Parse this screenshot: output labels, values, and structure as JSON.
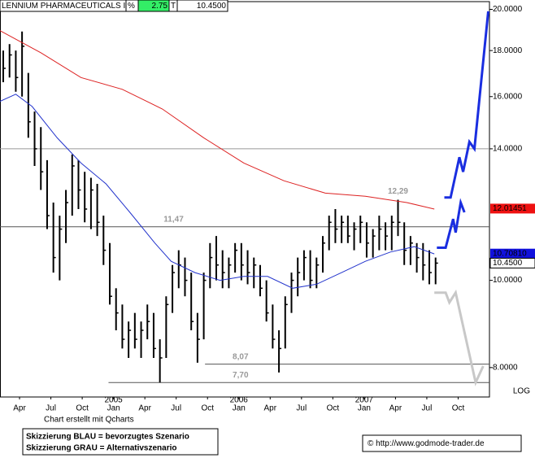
{
  "header": {
    "name": "LENNIUM PHARMACEUTICALS I",
    "unit": "%",
    "change": "2.75",
    "flag": "T",
    "price": "10.4500"
  },
  "footer": {
    "note": "Chart erstellt mit Qcharts",
    "scenarios": [
      "Skizzierung BLAU = bevorzugtes Szenario",
      "Skizzierung GRAU = Alternativszenario"
    ],
    "copyright": "© http://www.godmode-trader.de"
  },
  "chart_data": {
    "type": "ohlc",
    "log_scale": true,
    "scale_label": "LOG",
    "bar_color": "#000000",
    "xlim": [
      2004.094,
      2008.0
    ],
    "ylim": [
      7.42,
      20.4
    ],
    "xticks": [
      {
        "value": 2004.25,
        "label": "Apr"
      },
      {
        "value": 2004.5,
        "label": "Jul"
      },
      {
        "value": 2004.75,
        "label": "Oct"
      },
      {
        "value": 2005.0,
        "label": "Jan"
      },
      {
        "value": 2005.25,
        "label": "Apr"
      },
      {
        "value": 2005.5,
        "label": "Jul"
      },
      {
        "value": 2005.75,
        "label": "Oct"
      },
      {
        "value": 2006.0,
        "label": "Jan"
      },
      {
        "value": 2006.25,
        "label": "Apr"
      },
      {
        "value": 2006.5,
        "label": "Jul"
      },
      {
        "value": 2006.75,
        "label": "Oct"
      },
      {
        "value": 2007.0,
        "label": "Jan"
      },
      {
        "value": 2007.25,
        "label": "Apr"
      },
      {
        "value": 2007.5,
        "label": "Jul"
      },
      {
        "value": 2007.75,
        "label": "Oct"
      }
    ],
    "year_labels": [
      {
        "value": 2005.0,
        "label": "2005"
      },
      {
        "value": 2006.0,
        "label": "2006"
      },
      {
        "value": 2007.0,
        "label": "2007"
      }
    ],
    "yticks": [
      {
        "value": 20,
        "label": "20.0000"
      },
      {
        "value": 18,
        "label": "18.0000"
      },
      {
        "value": 16,
        "label": "16.0000"
      },
      {
        "value": 14,
        "label": "14.0000"
      },
      {
        "value": 10,
        "label": "10.0000"
      },
      {
        "value": 8,
        "label": "8.0000"
      }
    ],
    "bars": [
      {
        "x": 2004.12,
        "high": 18.0,
        "low": 16.6,
        "close": 17.2
      },
      {
        "x": 2004.17,
        "high": 18.3,
        "low": 16.8,
        "close": 17.8
      },
      {
        "x": 2004.22,
        "high": 18.0,
        "low": 16.2,
        "close": 16.8
      },
      {
        "x": 2004.27,
        "high": 18.9,
        "low": 16.0,
        "close": 18.2
      },
      {
        "x": 2004.32,
        "high": 17.0,
        "low": 14.4,
        "close": 15.0
      },
      {
        "x": 2004.37,
        "high": 15.4,
        "low": 13.4,
        "close": 14.0
      },
      {
        "x": 2004.42,
        "high": 14.8,
        "low": 12.6,
        "close": 13.2
      },
      {
        "x": 2004.47,
        "high": 13.6,
        "low": 11.4,
        "close": 11.8
      },
      {
        "x": 2004.52,
        "high": 12.2,
        "low": 10.2,
        "close": 10.6
      },
      {
        "x": 2004.57,
        "high": 11.8,
        "low": 10.0,
        "close": 11.4
      },
      {
        "x": 2004.62,
        "high": 12.6,
        "low": 11.0,
        "close": 12.2
      },
      {
        "x": 2004.67,
        "high": 13.8,
        "low": 11.8,
        "close": 13.4
      },
      {
        "x": 2004.72,
        "high": 13.6,
        "low": 12.0,
        "close": 12.6
      },
      {
        "x": 2004.77,
        "high": 13.2,
        "low": 11.6,
        "close": 12.0
      },
      {
        "x": 2004.82,
        "high": 13.0,
        "low": 11.4,
        "close": 12.6
      },
      {
        "x": 2004.87,
        "high": 12.8,
        "low": 11.2,
        "close": 11.6
      },
      {
        "x": 2004.92,
        "high": 11.8,
        "low": 10.4,
        "close": 10.8
      },
      {
        "x": 2004.97,
        "high": 11.0,
        "low": 9.4,
        "close": 9.6
      },
      {
        "x": 2005.02,
        "high": 9.8,
        "low": 8.8,
        "close": 9.2
      },
      {
        "x": 2005.07,
        "high": 9.4,
        "low": 8.4,
        "close": 8.6
      },
      {
        "x": 2005.12,
        "high": 9.0,
        "low": 8.2,
        "close": 8.8
      },
      {
        "x": 2005.17,
        "high": 9.2,
        "low": 8.4,
        "close": 8.6
      },
      {
        "x": 2005.22,
        "high": 9.0,
        "low": 8.2,
        "close": 8.8
      },
      {
        "x": 2005.27,
        "high": 9.4,
        "low": 8.6,
        "close": 9.0
      },
      {
        "x": 2005.32,
        "high": 9.2,
        "low": 8.2,
        "close": 8.4
      },
      {
        "x": 2005.37,
        "high": 8.6,
        "low": 7.7,
        "close": 8.2
      },
      {
        "x": 2005.42,
        "high": 9.6,
        "low": 8.2,
        "close": 9.4
      },
      {
        "x": 2005.47,
        "high": 10.4,
        "low": 9.2,
        "close": 10.2
      },
      {
        "x": 2005.52,
        "high": 10.8,
        "low": 9.8,
        "close": 10.4
      },
      {
        "x": 2005.57,
        "high": 10.6,
        "low": 9.6,
        "close": 10.0
      },
      {
        "x": 2005.62,
        "high": 10.2,
        "low": 8.8,
        "close": 9.0
      },
      {
        "x": 2005.67,
        "high": 9.2,
        "low": 8.1,
        "close": 8.6
      },
      {
        "x": 2005.72,
        "high": 10.2,
        "low": 8.6,
        "close": 10.0
      },
      {
        "x": 2005.77,
        "high": 11.0,
        "low": 9.8,
        "close": 10.6
      },
      {
        "x": 2005.82,
        "high": 11.2,
        "low": 10.0,
        "close": 10.4
      },
      {
        "x": 2005.87,
        "high": 10.8,
        "low": 9.8,
        "close": 10.2
      },
      {
        "x": 2005.92,
        "high": 10.6,
        "low": 9.8,
        "close": 10.4
      },
      {
        "x": 2005.97,
        "high": 11.0,
        "low": 10.2,
        "close": 10.8
      },
      {
        "x": 2006.02,
        "high": 11.0,
        "low": 10.0,
        "close": 10.4
      },
      {
        "x": 2006.07,
        "high": 10.8,
        "low": 9.9,
        "close": 10.2
      },
      {
        "x": 2006.12,
        "high": 10.6,
        "low": 9.8,
        "close": 10.4
      },
      {
        "x": 2006.17,
        "high": 10.4,
        "low": 9.6,
        "close": 9.8
      },
      {
        "x": 2006.22,
        "high": 10.0,
        "low": 9.0,
        "close": 9.2
      },
      {
        "x": 2006.27,
        "high": 9.4,
        "low": 8.4,
        "close": 8.6
      },
      {
        "x": 2006.32,
        "high": 8.8,
        "low": 7.9,
        "close": 8.4
      },
      {
        "x": 2006.37,
        "high": 9.6,
        "low": 8.4,
        "close": 9.4
      },
      {
        "x": 2006.42,
        "high": 10.2,
        "low": 9.2,
        "close": 10.0
      },
      {
        "x": 2006.47,
        "high": 10.6,
        "low": 9.6,
        "close": 10.2
      },
      {
        "x": 2006.52,
        "high": 10.8,
        "low": 10.0,
        "close": 10.6
      },
      {
        "x": 2006.57,
        "high": 10.8,
        "low": 9.8,
        "close": 10.0
      },
      {
        "x": 2006.62,
        "high": 10.6,
        "low": 9.8,
        "close": 10.4
      },
      {
        "x": 2006.67,
        "high": 11.2,
        "low": 10.2,
        "close": 11.0
      },
      {
        "x": 2006.72,
        "high": 11.8,
        "low": 10.8,
        "close": 11.6
      },
      {
        "x": 2006.77,
        "high": 12.0,
        "low": 11.0,
        "close": 11.4
      },
      {
        "x": 2006.82,
        "high": 11.8,
        "low": 11.0,
        "close": 11.6
      },
      {
        "x": 2006.87,
        "high": 11.8,
        "low": 11.0,
        "close": 11.2
      },
      {
        "x": 2006.92,
        "high": 11.6,
        "low": 10.8,
        "close": 11.4
      },
      {
        "x": 2006.97,
        "high": 11.8,
        "low": 11.0,
        "close": 11.6
      },
      {
        "x": 2007.02,
        "high": 11.6,
        "low": 10.6,
        "close": 11.0
      },
      {
        "x": 2007.07,
        "high": 11.4,
        "low": 10.6,
        "close": 11.2
      },
      {
        "x": 2007.12,
        "high": 11.8,
        "low": 10.8,
        "close": 11.4
      },
      {
        "x": 2007.17,
        "high": 11.6,
        "low": 10.8,
        "close": 11.2
      },
      {
        "x": 2007.22,
        "high": 11.8,
        "low": 10.8,
        "close": 11.6
      },
      {
        "x": 2007.27,
        "high": 12.29,
        "low": 11.2,
        "close": 11.6
      },
      {
        "x": 2007.32,
        "high": 11.6,
        "low": 10.4,
        "close": 10.8
      },
      {
        "x": 2007.37,
        "high": 11.2,
        "low": 10.4,
        "close": 11.0
      },
      {
        "x": 2007.42,
        "high": 11.0,
        "low": 10.2,
        "close": 10.6
      },
      {
        "x": 2007.47,
        "high": 11.0,
        "low": 10.0,
        "close": 10.4
      },
      {
        "x": 2007.52,
        "high": 10.8,
        "low": 9.9,
        "close": 10.2
      },
      {
        "x": 2007.57,
        "high": 10.6,
        "low": 9.9,
        "close": 10.45
      }
    ],
    "lines": [
      {
        "color": "#dd2222",
        "width": 1,
        "x": [
          2004.09,
          2004.42,
          2004.74,
          2005.07,
          2005.39,
          2005.72,
          2006.04,
          2006.36,
          2006.69,
          2007.01,
          2007.34,
          2007.56
        ],
        "values": [
          18.95,
          17.9,
          16.8,
          16.3,
          15.5,
          14.4,
          13.5,
          12.9,
          12.5,
          12.4,
          12.2,
          12.0
        ]
      },
      {
        "color": "#2233cc",
        "width": 1,
        "x": [
          2004.09,
          2004.22,
          2004.35,
          2004.55,
          2004.74,
          2004.94,
          2005.13,
          2005.33,
          2005.46,
          2005.65,
          2005.85,
          2006.04,
          2006.23,
          2006.43,
          2006.62,
          2006.82,
          2007.01,
          2007.21,
          2007.4,
          2007.56
        ],
        "values": [
          15.8,
          16.1,
          15.6,
          14.4,
          13.5,
          12.8,
          11.9,
          11.0,
          10.5,
          10.2,
          10.0,
          10.1,
          10.1,
          9.8,
          9.9,
          10.2,
          10.5,
          10.75,
          10.9,
          10.7
        ]
      },
      {
        "color": "#1a2ee0",
        "width": 3,
        "x": [
          2007.58,
          2007.65,
          2007.71,
          2007.73,
          2007.77,
          2007.8,
          2007.8,
          2007.64,
          2007.69,
          2007.76,
          2007.79,
          2007.84,
          2007.88,
          2007.99
        ],
        "values": [
          10.87,
          10.87,
          11.7,
          11.3,
          12.2,
          11.9,
          null,
          12.36,
          12.36,
          13.7,
          13.2,
          14.25,
          14.0,
          19.9
        ]
      },
      {
        "color": "#c8c8c8",
        "width": 3,
        "x": [
          2007.56,
          2007.65,
          2007.68,
          2007.73,
          2007.89,
          2007.95
        ],
        "values": [
          9.69,
          9.69,
          9.45,
          9.69,
          7.7,
          8.03
        ]
      }
    ],
    "levels": [
      {
        "value": 14,
        "from": 2004.094,
        "color": "#999999"
      },
      {
        "value": 11.47,
        "from": 2004.094,
        "color": "#555555",
        "label": "11,47",
        "label_x": 2005.4
      },
      {
        "value": 8.07,
        "from": 2005.73,
        "color": "#555555",
        "label": "8,07",
        "label_x": 2005.95
      },
      {
        "value": 7.7,
        "from": 2004.96,
        "color": "#555555",
        "label": "7,70",
        "label_x": 2005.95
      }
    ],
    "annotations": [
      {
        "x": 2007.27,
        "value": 12.29,
        "label": "12,29"
      }
    ],
    "price_tags": [
      {
        "value": 12.01451,
        "label": "12.01451",
        "background": "#ee1111",
        "text_color": "#ffffff"
      },
      {
        "value": 10.7081,
        "label": "10.70810",
        "background": "#1111dd",
        "text_color": "#ffffff"
      },
      {
        "value": 10.45,
        "label": "10.4500",
        "background": "#ffffff",
        "text_color": "#000000"
      }
    ]
  }
}
